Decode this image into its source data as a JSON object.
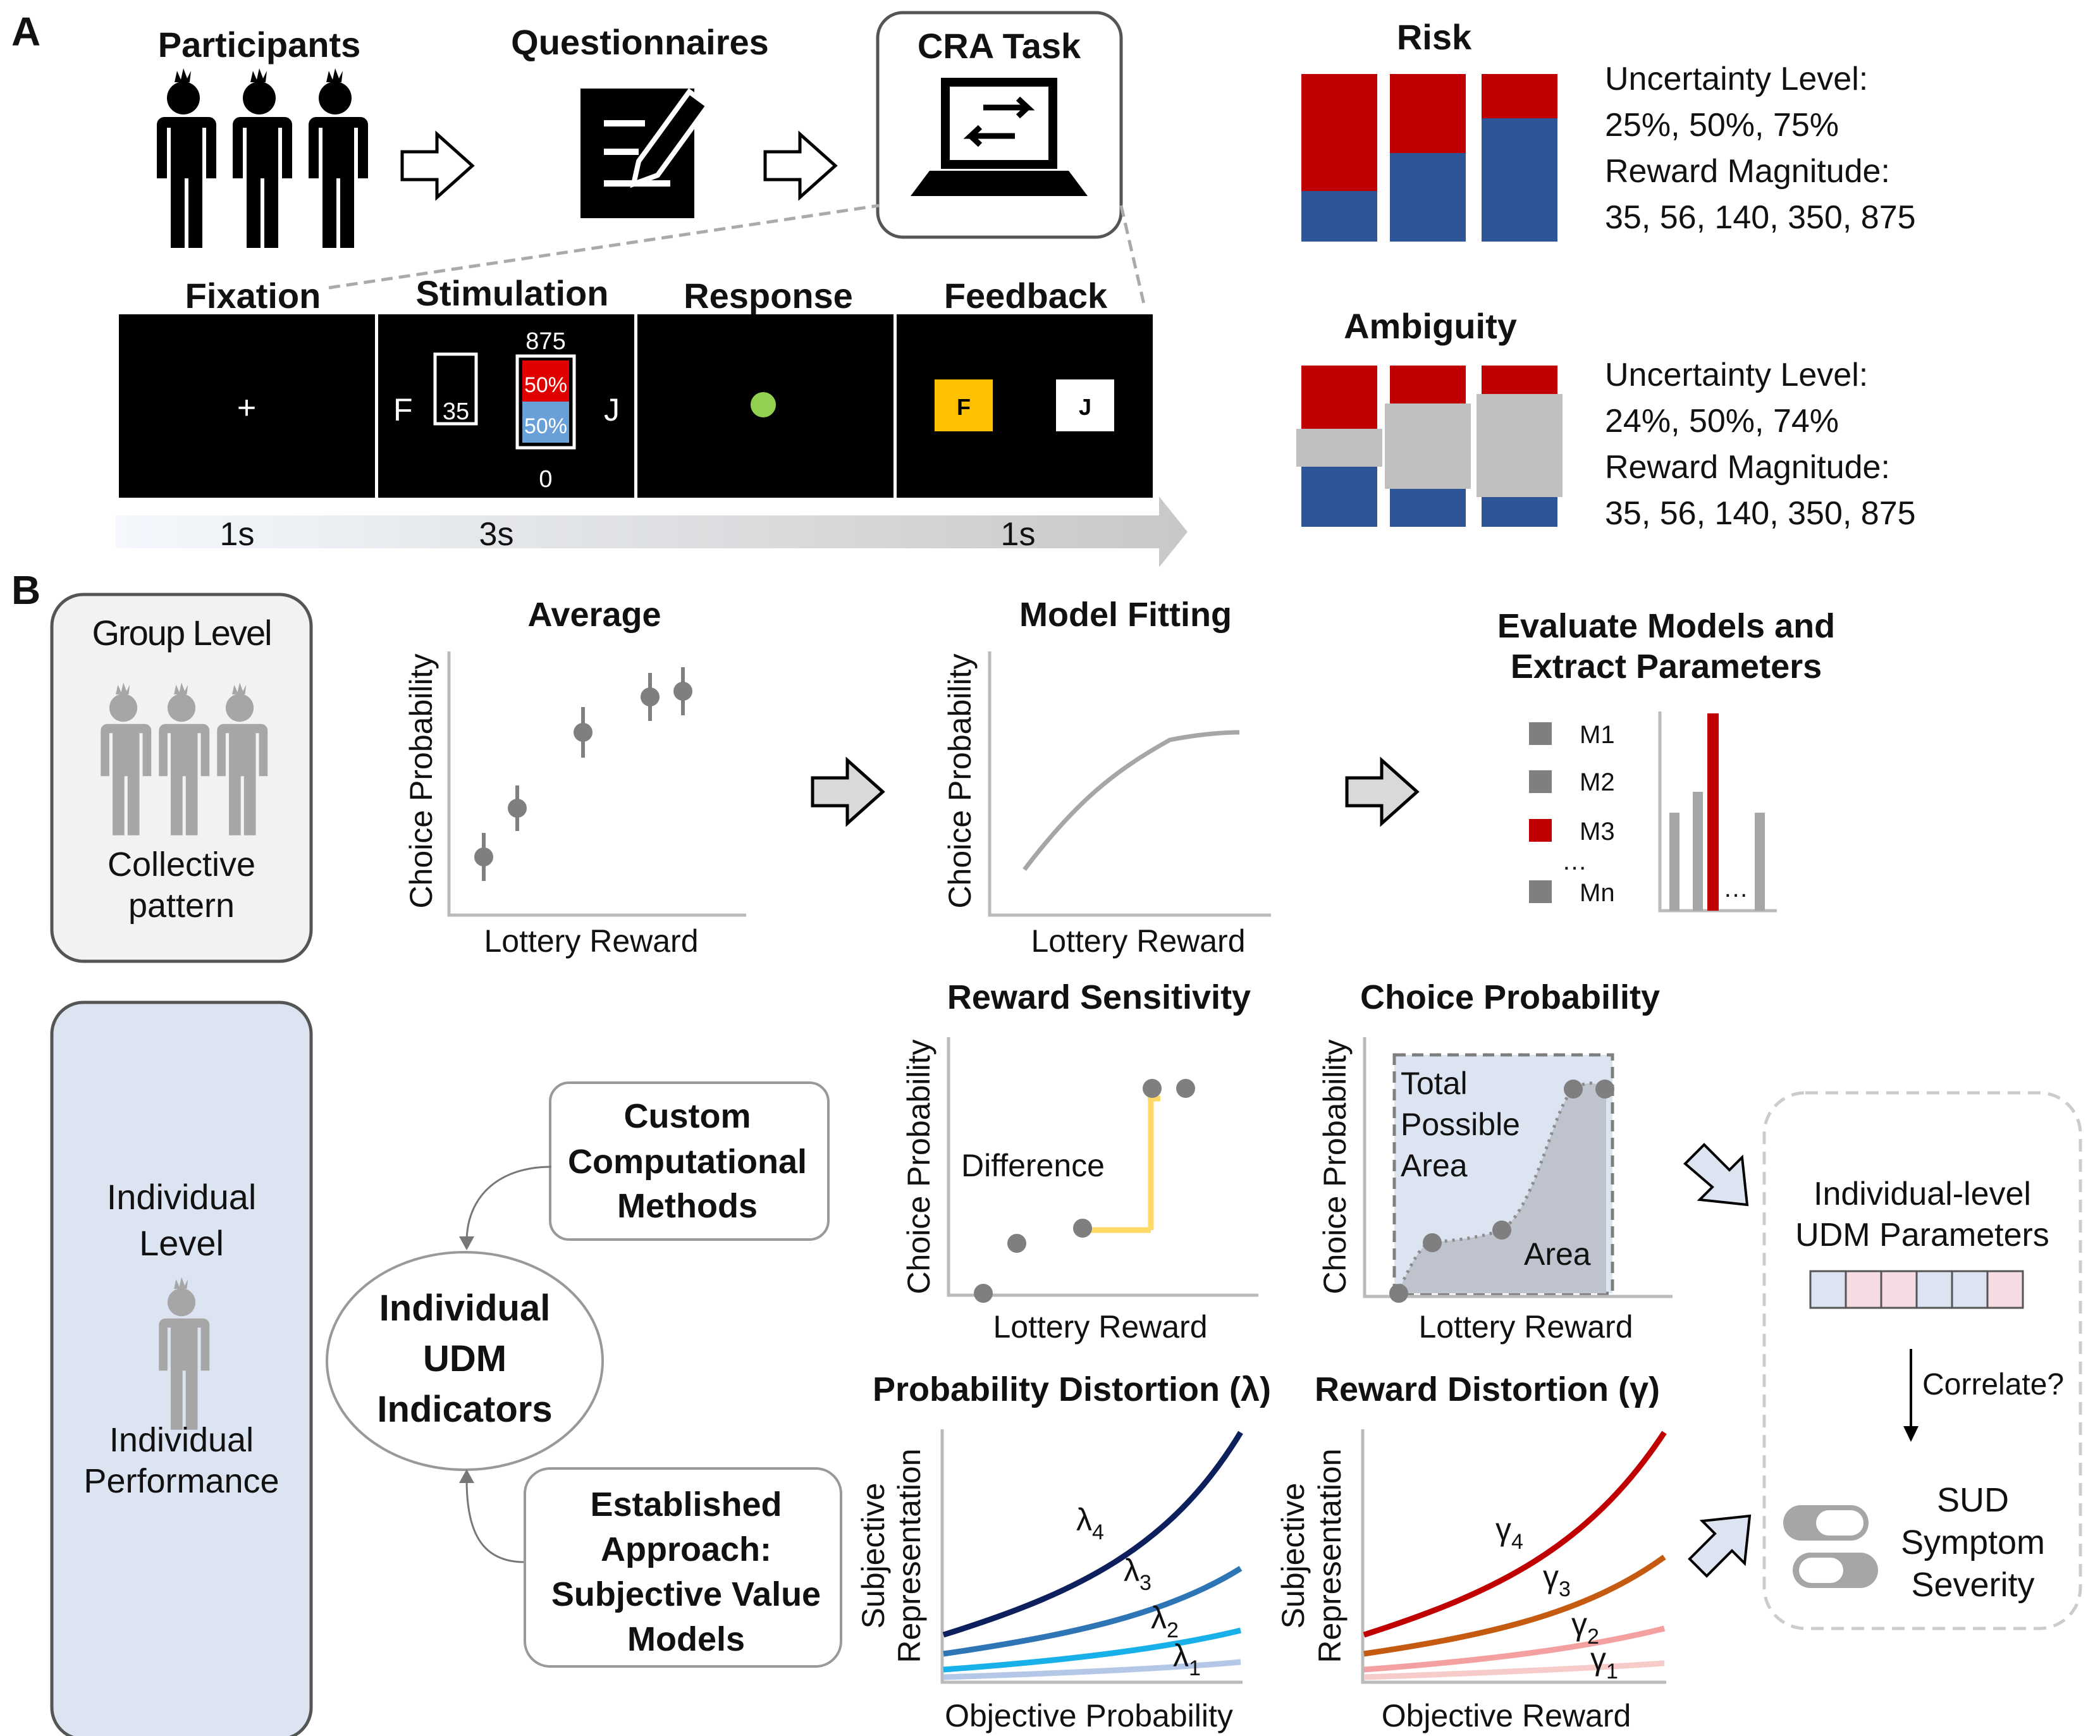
{
  "panel_a": {
    "letter": "A",
    "participants": "Participants",
    "questionnaires": "Questionnaires",
    "cra_task": "CRA Task",
    "stages": [
      "Fixation",
      "Stimulation",
      "Response",
      "Feedback"
    ],
    "stim": {
      "top": "875",
      "safe": "35",
      "p_red": "50%",
      "p_blue": "50%",
      "bottom": "0",
      "left_key": "F",
      "right_key": "J"
    },
    "fix_symbol": "+",
    "feedback": {
      "left": "F",
      "right": "J"
    },
    "timeline": [
      "1s",
      "3s",
      "1s"
    ],
    "risk": {
      "title": "Risk",
      "lines": [
        "Uncertainty Level:",
        "25%, 50%, 75%",
        "Reward Magnitude:",
        "35, 56, 140, 350, 875"
      ]
    },
    "ambiguity": {
      "title": "Ambiguity",
      "lines": [
        "Uncertainty Level:",
        "24%, 50%, 74%",
        "Reward Magnitude:",
        "35, 56, 140, 350, 875"
      ]
    }
  },
  "panel_b": {
    "letter": "B",
    "group": {
      "title": "Group Level",
      "lines": [
        "Collective",
        "pattern"
      ]
    },
    "individual": {
      "lines": [
        "Individual",
        "Level"
      ],
      "perf": [
        "Individual",
        "Performance"
      ]
    },
    "average": {
      "title": "Average",
      "ylabel": "Choice Probability",
      "xlabel": "Lottery Reward"
    },
    "model_fit": {
      "title": "Model Fitting",
      "ylabel": "Choice Probability",
      "xlabel": "Lottery Reward"
    },
    "evaluate": {
      "title": [
        "Evaluate Models and",
        "Extract Parameters"
      ],
      "models": [
        "M1",
        "M2",
        "M3",
        "Mn"
      ],
      "ellipsis": "…"
    },
    "custom": [
      "Custom",
      "Computational",
      "Methods"
    ],
    "indicators": [
      "Individual",
      "UDM",
      "Indicators"
    ],
    "established": [
      "Established",
      "Approach:",
      "Subjective Value",
      "Models"
    ],
    "reward_sens": {
      "title": "Reward Sensitivity",
      "ylabel": "Choice Probability",
      "xlabel": "Lottery Reward",
      "label": "Difference"
    },
    "choice_prob": {
      "title": "Choice Probability",
      "ylabel": "Choice Probability",
      "xlabel": "Lottery Reward",
      "total": [
        "Total",
        "Possible",
        "Area"
      ],
      "area": "Area"
    },
    "prob_dist": {
      "title": "Probability Distortion (λ)",
      "ylabel": [
        "Subjective",
        "Representation"
      ],
      "xlabel": "Objective Probability",
      "curves": [
        "λ",
        "λ",
        "λ",
        "λ"
      ],
      "subs": [
        "4",
        "3",
        "2",
        "1"
      ]
    },
    "reward_dist": {
      "title": "Reward Distortion (γ)",
      "ylabel": [
        "Subjective",
        "Representation"
      ],
      "xlabel": "Objective Reward",
      "curves": [
        "γ",
        "γ",
        "γ",
        "γ"
      ],
      "subs": [
        "4",
        "3",
        "2",
        "1"
      ]
    },
    "udm_params": [
      "Individual-level",
      "UDM Parameters"
    ],
    "correlate": "Correlate?",
    "sud": [
      "SUD",
      "Symptom",
      "Severity"
    ]
  },
  "colors": {
    "red": "#c00000",
    "blue": "#2e5597",
    "gray": "#7f7f7f",
    "yellow": "#ffd966",
    "light_blue": "#dce4f2",
    "green": "#92d050",
    "orange": "#ffc000"
  }
}
